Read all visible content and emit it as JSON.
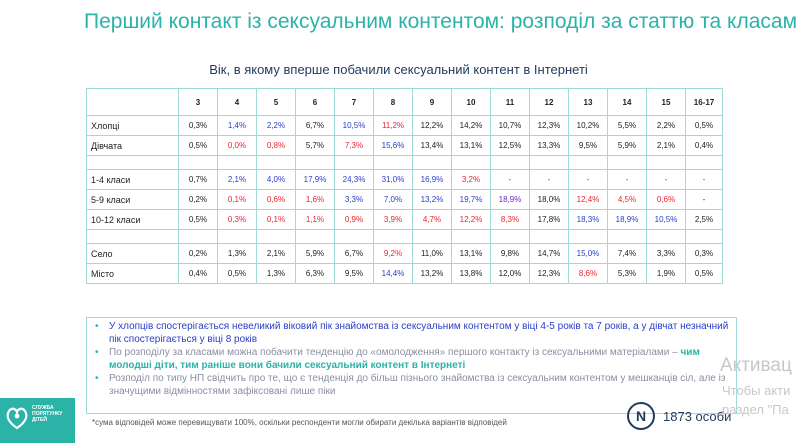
{
  "title": "Перший контакт із сексуальним контентом: розподіл за статтю та класами",
  "subtitle": "Вік, в якому вперше побачили сексуальний контент в Інтернеті",
  "colors": {
    "accent": "#2bb3a8",
    "navy": "#1f3a5f",
    "blue": "#2a40c8",
    "red": "#e8262d",
    "purple": "#6a2ac0"
  },
  "table": {
    "headers": [
      "3",
      "4",
      "5",
      "6",
      "7",
      "8",
      "9",
      "10",
      "11",
      "12",
      "13",
      "14",
      "15",
      "16-17"
    ],
    "rows": [
      {
        "label": "Хлопці",
        "cells": [
          {
            "v": "0,3%",
            "c": ""
          },
          {
            "v": "1,4%",
            "c": "blue"
          },
          {
            "v": "2,2%",
            "c": "blue"
          },
          {
            "v": "6,7%",
            "c": ""
          },
          {
            "v": "10,5%",
            "c": "blue"
          },
          {
            "v": "11,2%",
            "c": "red"
          },
          {
            "v": "12,2%",
            "c": ""
          },
          {
            "v": "14,2%",
            "c": ""
          },
          {
            "v": "10,7%",
            "c": ""
          },
          {
            "v": "12,3%",
            "c": ""
          },
          {
            "v": "10,2%",
            "c": ""
          },
          {
            "v": "5,5%",
            "c": ""
          },
          {
            "v": "2,2%",
            "c": ""
          },
          {
            "v": "0,5%",
            "c": ""
          }
        ]
      },
      {
        "label": "Дівчата",
        "cells": [
          {
            "v": "0,5%",
            "c": ""
          },
          {
            "v": "0,0%",
            "c": "red"
          },
          {
            "v": "0,8%",
            "c": "red"
          },
          {
            "v": "5,7%",
            "c": ""
          },
          {
            "v": "7,3%",
            "c": "red"
          },
          {
            "v": "15,6%",
            "c": "blue"
          },
          {
            "v": "13,4%",
            "c": ""
          },
          {
            "v": "13,1%",
            "c": ""
          },
          {
            "v": "12,5%",
            "c": ""
          },
          {
            "v": "13,3%",
            "c": ""
          },
          {
            "v": "9,5%",
            "c": ""
          },
          {
            "v": "5,9%",
            "c": ""
          },
          {
            "v": "2,1%",
            "c": ""
          },
          {
            "v": "0,4%",
            "c": ""
          }
        ]
      },
      {
        "gap": true
      },
      {
        "label": "1-4 класи",
        "cells": [
          {
            "v": "0,7%",
            "c": ""
          },
          {
            "v": "2,1%",
            "c": "blue"
          },
          {
            "v": "4,0%",
            "c": "blue"
          },
          {
            "v": "17,9%",
            "c": "blue"
          },
          {
            "v": "24,3%",
            "c": "blue"
          },
          {
            "v": "31,0%",
            "c": "blue"
          },
          {
            "v": "16,9%",
            "c": "blue"
          },
          {
            "v": "3,2%",
            "c": "red"
          },
          {
            "v": "-",
            "c": "blue"
          },
          {
            "v": "-",
            "c": "blue"
          },
          {
            "v": "-",
            "c": "blue"
          },
          {
            "v": "-",
            "c": "blue"
          },
          {
            "v": "-",
            "c": "blue"
          },
          {
            "v": "-",
            "c": "blue"
          }
        ]
      },
      {
        "label": "5-9 класи",
        "cells": [
          {
            "v": "0,2%",
            "c": ""
          },
          {
            "v": "0,1%",
            "c": "red"
          },
          {
            "v": "0,6%",
            "c": "red"
          },
          {
            "v": "1,6%",
            "c": "red"
          },
          {
            "v": "3,3%",
            "c": "blue"
          },
          {
            "v": "7,0%",
            "c": "blue"
          },
          {
            "v": "13,2%",
            "c": "blue"
          },
          {
            "v": "19,7%",
            "c": "blue"
          },
          {
            "v": "18,9%",
            "c": "purple"
          },
          {
            "v": "18,0%",
            "c": ""
          },
          {
            "v": "12,4%",
            "c": "red"
          },
          {
            "v": "4,5%",
            "c": "red"
          },
          {
            "v": "0,6%",
            "c": "red"
          },
          {
            "v": "-",
            "c": ""
          }
        ]
      },
      {
        "label": "10-12 класи",
        "cells": [
          {
            "v": "0,5%",
            "c": ""
          },
          {
            "v": "0,3%",
            "c": "red"
          },
          {
            "v": "0,1%",
            "c": "red"
          },
          {
            "v": "1,1%",
            "c": "red"
          },
          {
            "v": "0,9%",
            "c": "red"
          },
          {
            "v": "3,9%",
            "c": "red"
          },
          {
            "v": "4,7%",
            "c": "red"
          },
          {
            "v": "12,2%",
            "c": "red"
          },
          {
            "v": "8,3%",
            "c": "red"
          },
          {
            "v": "17,8%",
            "c": ""
          },
          {
            "v": "18,3%",
            "c": "blue"
          },
          {
            "v": "18,9%",
            "c": "blue"
          },
          {
            "v": "10,5%",
            "c": "blue"
          },
          {
            "v": "2,5%",
            "c": ""
          }
        ]
      },
      {
        "gap": true
      },
      {
        "label": "Село",
        "cells": [
          {
            "v": "0,2%",
            "c": ""
          },
          {
            "v": "1,3%",
            "c": ""
          },
          {
            "v": "2,1%",
            "c": ""
          },
          {
            "v": "5,9%",
            "c": ""
          },
          {
            "v": "6,7%",
            "c": ""
          },
          {
            "v": "9,2%",
            "c": "red"
          },
          {
            "v": "11,0%",
            "c": ""
          },
          {
            "v": "13,1%",
            "c": ""
          },
          {
            "v": "9,8%",
            "c": ""
          },
          {
            "v": "14,7%",
            "c": ""
          },
          {
            "v": "15,0%",
            "c": "blue"
          },
          {
            "v": "7,4%",
            "c": ""
          },
          {
            "v": "3,3%",
            "c": ""
          },
          {
            "v": "0,3%",
            "c": ""
          }
        ]
      },
      {
        "label": "Місто",
        "cells": [
          {
            "v": "0,4%",
            "c": ""
          },
          {
            "v": "0,5%",
            "c": ""
          },
          {
            "v": "1,3%",
            "c": ""
          },
          {
            "v": "6,3%",
            "c": ""
          },
          {
            "v": "9,5%",
            "c": ""
          },
          {
            "v": "14,4%",
            "c": "blue"
          },
          {
            "v": "13,2%",
            "c": ""
          },
          {
            "v": "13,8%",
            "c": ""
          },
          {
            "v": "12,0%",
            "c": ""
          },
          {
            "v": "12,3%",
            "c": ""
          },
          {
            "v": "8,6%",
            "c": "red"
          },
          {
            "v": "5,3%",
            "c": ""
          },
          {
            "v": "1,9%",
            "c": ""
          },
          {
            "v": "0,5%",
            "c": ""
          }
        ]
      }
    ]
  },
  "notes": {
    "bullet": "•",
    "n1": "У хлопців спостерігається невеликий віковий пік знайомства із сексуальним контентом у віці 4-5 років та 7 років, а у дівчат незначний пік спостерігається у віці 8 років",
    "n2_pre": "По розподілу за класами можна побачити тенденцію до «омолодження» першого контакту із сексуальними матеріалами – ",
    "n2_bold": "чим молодші діти, тим раніше вони бачили сексуальний контент в Інтернеті",
    "n3": "Розподіл по типу НП свідчить про те, що є тенденція до більш пізнього знайомства із сексуальним контентом у мешканців сіл, але із значущими відмінностями зафіксовані лише піки"
  },
  "footnote": "*сума відповідей може перевищувати 100%, оскільки респонденти могли обирати декілька варіантів відповідей",
  "sample": {
    "badge": "N",
    "count": "1873 особи"
  },
  "brand": {
    "line1": "СЛУЖБА",
    "line2": "ПОРЯТУНКУ",
    "line3": "ДІТЕЙ",
    "icon": "heart-hands-icon"
  },
  "watermark": {
    "line1": "Активац",
    "line2": "Чтобы акти",
    "line3": "раздел \"Па"
  }
}
